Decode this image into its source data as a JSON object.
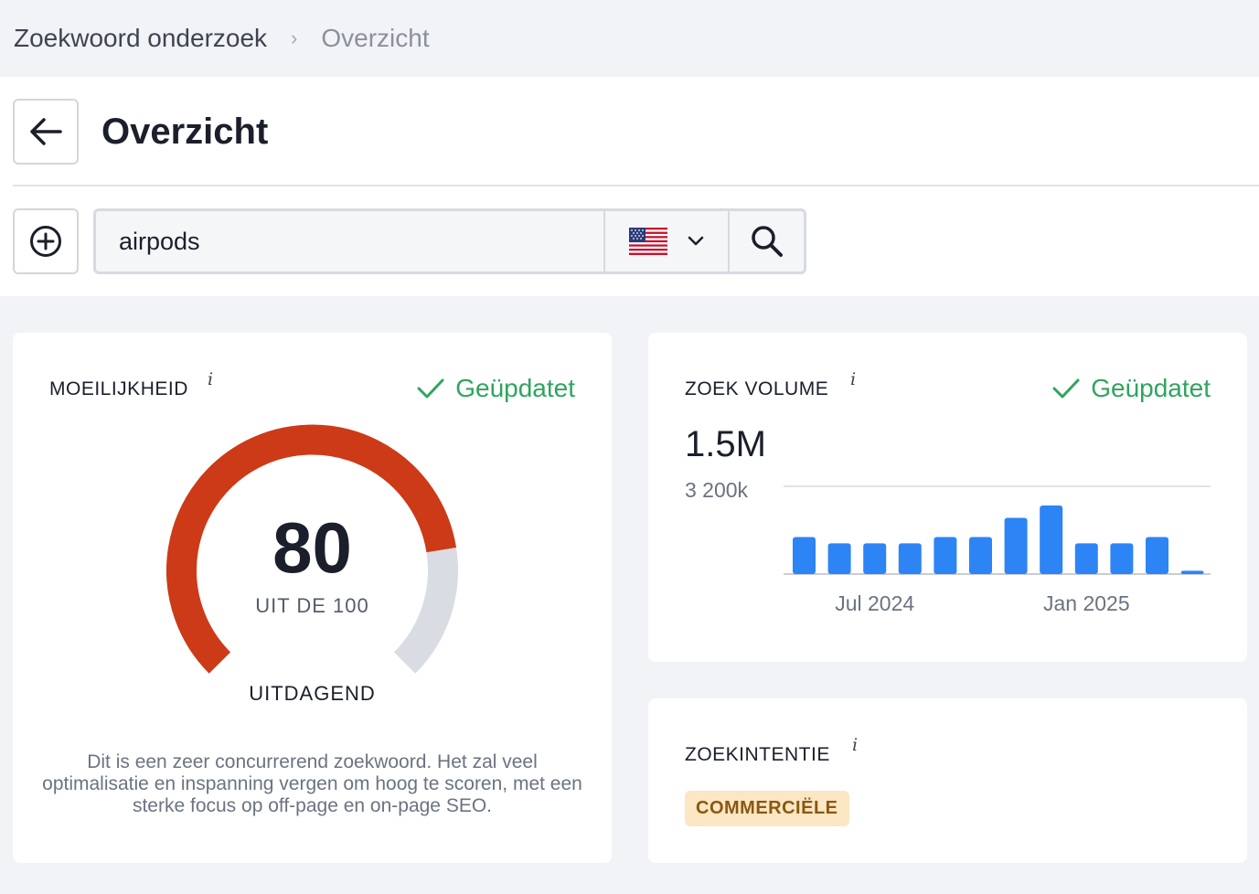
{
  "breadcrumb": {
    "items": [
      "Zoekwoord onderzoek",
      "Overzicht"
    ],
    "separator": "›"
  },
  "header": {
    "title": "Overzicht"
  },
  "search": {
    "value": "airpods",
    "country_flag": "us-flag-icon"
  },
  "difficulty": {
    "label": "MOEILIJKHEID",
    "info": "i",
    "status": "Geüpdatet",
    "score": "80",
    "score_sub": "UIT DE 100",
    "score_fraction": 0.8,
    "level": "UITDAGEND",
    "description": "Dit is een zeer concurrerend zoekwoord. Het zal veel optimalisatie en inspanning vergen om hoog te scoren, met een sterke focus op off-page en on-page SEO.",
    "colors": {
      "fill": "#cc3a17",
      "track": "#d9dce3"
    }
  },
  "volume": {
    "label": "ZOEK VOLUME",
    "info": "i",
    "status": "Geüpdatet",
    "value": "1.5M"
  },
  "chart_data": {
    "type": "bar",
    "ytick_label": "3 200k",
    "ytick_value": 3200,
    "x_tick_labels": [
      {
        "label": "Jul 2024",
        "index": 2
      },
      {
        "label": "Jan 2025",
        "index": 8
      }
    ],
    "values": [
      1350,
      1120,
      1120,
      1120,
      1350,
      1350,
      2050,
      2500,
      1120,
      1120,
      1350,
      120
    ],
    "color": "#2d84f5",
    "ylim": [
      0,
      3200
    ]
  },
  "intent": {
    "label": "ZOEKINTENTIE",
    "info": "i",
    "badge": "COMMERCIËLE"
  },
  "colors": {
    "success": "#2fa55e",
    "accent": "#2d84f5"
  }
}
